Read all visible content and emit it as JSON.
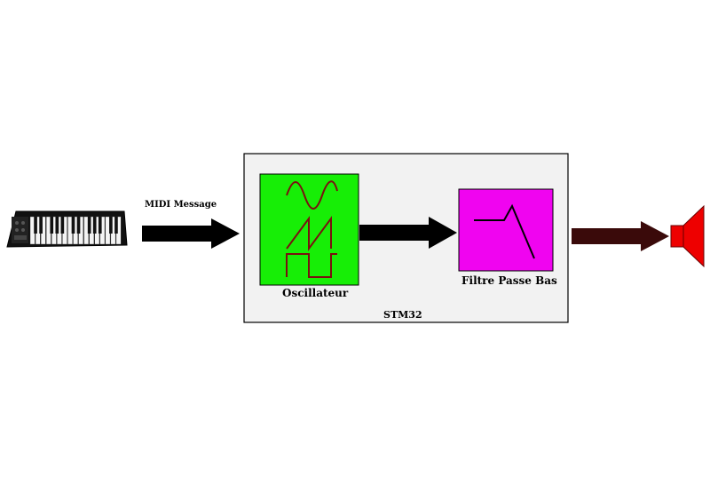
{
  "diagram": {
    "input_label": "MIDI Message",
    "container_label": "STM32",
    "oscillator_label": "Oscillateur",
    "filter_label": "Filtre Passe Bas"
  },
  "colors": {
    "container_fill": "#f2f2f2",
    "oscillator_fill": "#17ee06",
    "oscillator_waveform": "#7a1010",
    "filter_fill": "#f004f0",
    "filter_curve": "#000000",
    "arrow_black": "#000000",
    "arrow_output": "#3a0a0a",
    "speaker_fill": "#ee0000"
  },
  "icons": [
    "midi-keyboard-icon",
    "sine-wave-icon",
    "sawtooth-wave-icon",
    "square-wave-icon",
    "lowpass-curve-icon",
    "speaker-icon"
  ]
}
